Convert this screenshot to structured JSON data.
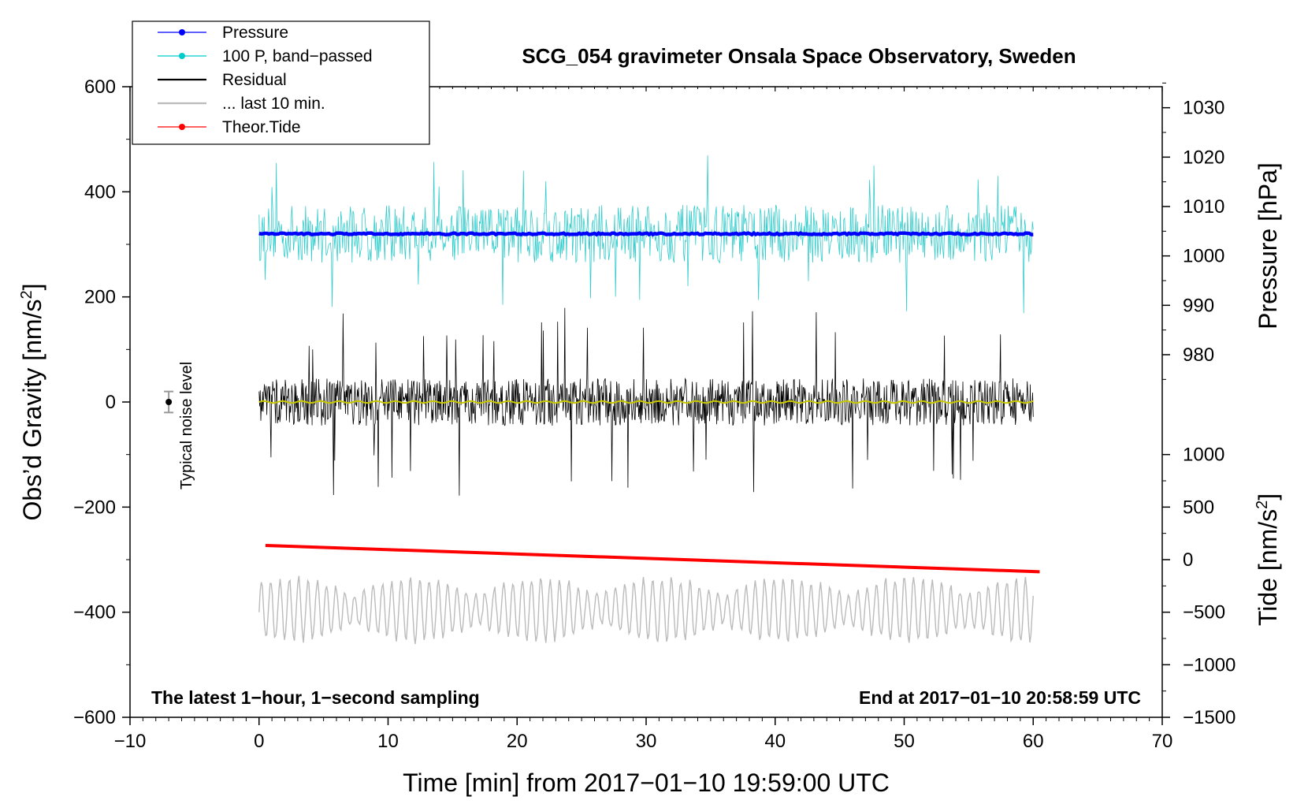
{
  "chart_data": {
    "type": "line",
    "title": "SCG_054 gravimeter Onsala Space Observatory, Sweden",
    "xlabel": "Time [min] from 2017−01−10 19:59:00 UTC",
    "ylabel": "Obs’d Gravity [nm/s",
    "ylabel_sup": "2",
    "ylabel_end": "]",
    "y2_pressure_label": "Pressure [hPa]",
    "y2_tide_label": "Tide [nm/s",
    "y2_tide_sup": "2",
    "y2_tide_end": "]",
    "xlim": [
      -10,
      70
    ],
    "ylim": [
      -600,
      600
    ],
    "x_ticks": [
      -10,
      0,
      10,
      20,
      30,
      40,
      50,
      60,
      70
    ],
    "x_tick_labels": [
      "−10",
      "0",
      "10",
      "20",
      "30",
      "40",
      "50",
      "60",
      "70"
    ],
    "y_ticks": [
      600,
      400,
      200,
      0,
      -200,
      -400,
      -600
    ],
    "y_tick_labels": [
      "600",
      "400",
      "200",
      "0",
      "−200",
      "−400",
      "−600"
    ],
    "pressure_axis": {
      "ticks": [
        1030,
        1020,
        1010,
        1000,
        990,
        980
      ],
      "tick_labels": [
        "1030",
        "1020",
        "1010",
        "1000",
        "990",
        "980"
      ],
      "gravity_equiv": [
        [
          1030,
          560
        ],
        [
          980,
          90
        ]
      ]
    },
    "tide_axis": {
      "ticks": [
        1000,
        500,
        0,
        -500,
        -1000,
        -1500
      ],
      "tick_labels": [
        "1000",
        "500",
        "0",
        "−500",
        "−1000",
        "−1500"
      ],
      "gravity_equiv": [
        [
          1000,
          -100
        ],
        [
          -1500,
          -600
        ]
      ]
    },
    "legend": [
      {
        "label": "Pressure",
        "color": "#0000ff",
        "marker": true
      },
      {
        "label": "100 P, band−passed",
        "color": "#00cccc",
        "marker": true
      },
      {
        "label": "Residual",
        "color": "#000000",
        "marker": false
      },
      {
        "label": "... last 10 min.",
        "color": "#bbbbbb",
        "marker": false
      },
      {
        "label": "Theor.Tide",
        "color": "#ff0000",
        "marker": true
      }
    ],
    "series": [
      {
        "name": "Pressure",
        "color": "#0000ff",
        "x_range": [
          0,
          60
        ],
        "center": 320,
        "amplitude": 3,
        "type": "line"
      },
      {
        "name": "100 P, band−passed",
        "color": "#33cccc",
        "x_range": [
          0,
          60
        ],
        "center": 320,
        "amplitude": 55,
        "spike_max": 155,
        "type": "noise"
      },
      {
        "name": "Residual",
        "color": "#000000",
        "x_range": [
          0,
          60
        ],
        "center": 0,
        "amplitude": 45,
        "spike_max": 180,
        "type": "noise"
      },
      {
        "name": "Residual smoothed",
        "color": "#c8c800",
        "x_range": [
          0,
          60
        ],
        "center": 0,
        "amplitude": 2,
        "type": "line"
      },
      {
        "name": "... last 10 min.",
        "color": "#bbbbbb",
        "x_range": [
          0,
          60
        ],
        "center": -395,
        "amplitude": 60,
        "type": "oscillation"
      },
      {
        "name": "Theor.Tide",
        "color": "#ff0000",
        "x": [
          0.5,
          60.5
        ],
        "y": [
          -273,
          -323
        ],
        "type": "line"
      }
    ],
    "noise_indicator": {
      "x": -7,
      "y": 0,
      "error": 20,
      "label": "Typical noise level"
    },
    "annotations": {
      "left": "The latest 1−hour, 1−second sampling",
      "right": "End at 2017−01−10 20:58:59 UTC"
    },
    "colors": {
      "pressure": "#0000ff",
      "band_passed": "#33cccc",
      "residual": "#000000",
      "residual_smoothed": "#c8c800",
      "last10": "#bbbbbb",
      "tide": "#ff0000",
      "noise_errbar": "#999999"
    }
  }
}
